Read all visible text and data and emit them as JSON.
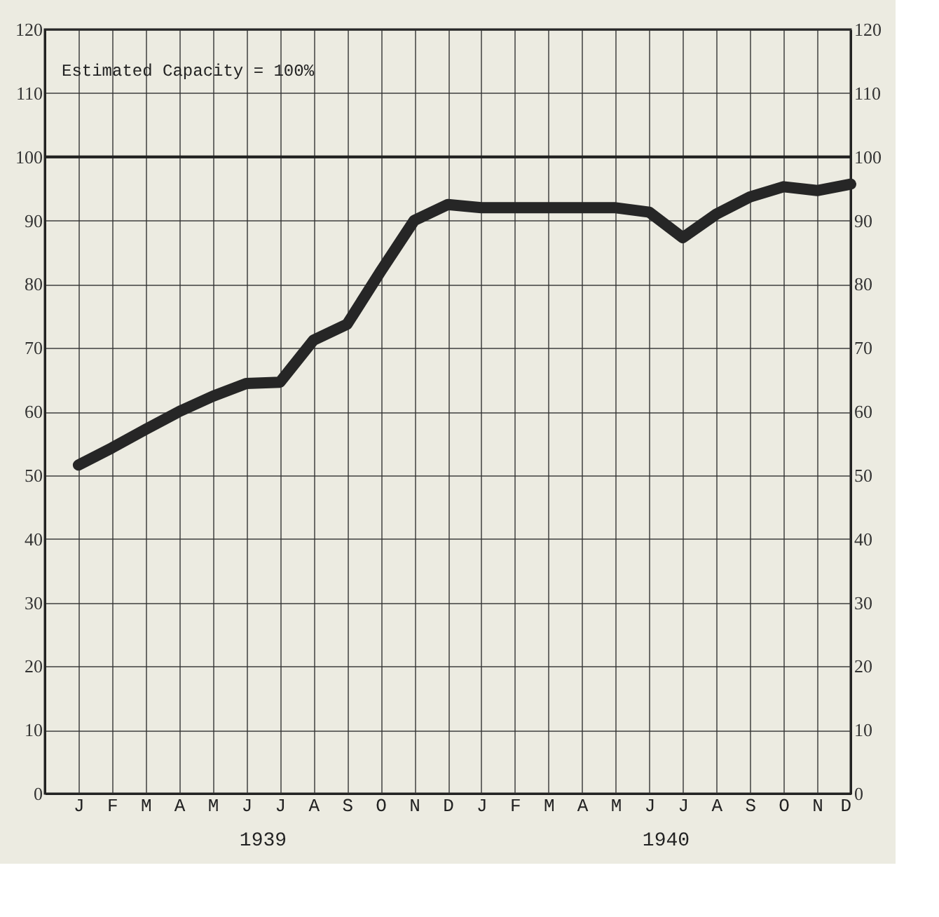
{
  "chart_data": {
    "type": "line",
    "categories": [
      "J",
      "F",
      "M",
      "A",
      "M",
      "J",
      "J",
      "A",
      "S",
      "O",
      "N",
      "D",
      "J",
      "F",
      "M",
      "A",
      "M",
      "J",
      "J",
      "A",
      "S",
      "O",
      "N",
      "D"
    ],
    "series": [
      {
        "color": "#262626",
        "values": [
          51.6,
          54.3,
          57.2,
          60,
          62.4,
          64.4,
          64.6,
          71.2,
          73.7,
          82,
          90,
          92.5,
          92,
          92,
          92,
          92,
          92,
          91.3,
          87.3,
          91,
          93.7,
          95.3,
          94.7,
          95.7
        ]
      }
    ],
    "ylim": [
      0,
      120
    ],
    "yticks": [
      0,
      10,
      20,
      30,
      40,
      50,
      60,
      70,
      80,
      90,
      100,
      110,
      120
    ],
    "y2lim": [
      0,
      120
    ],
    "y2ticks": [
      0,
      10,
      20,
      30,
      40,
      50,
      60,
      70,
      80,
      90,
      100,
      110,
      120
    ],
    "ref_lines": [
      {
        "axis": "y",
        "value": 100,
        "label": "Estimated Capacity = 100%",
        "color": "#222222"
      }
    ],
    "annotations": [
      "1939",
      "1940"
    ],
    "grid": true,
    "line_style": "solid"
  }
}
